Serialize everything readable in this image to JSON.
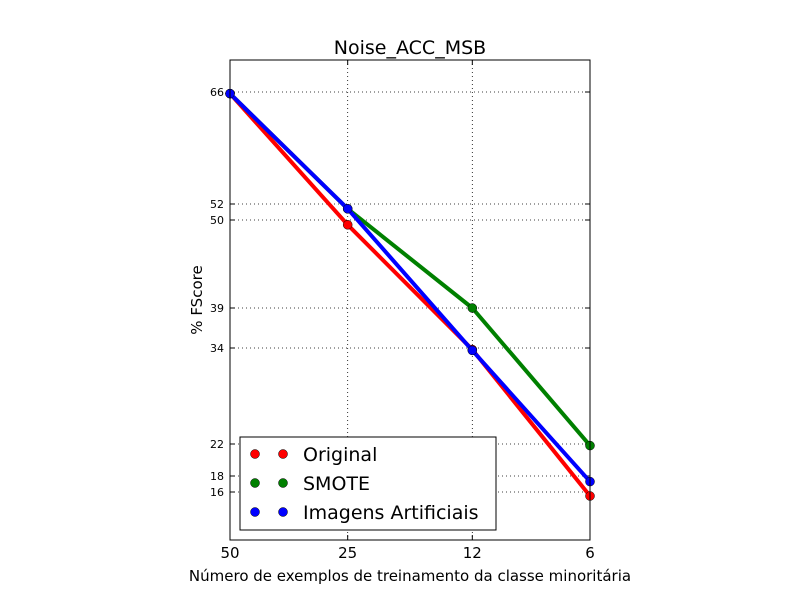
{
  "chart_data": {
    "type": "line",
    "title": "Noise_ACC_MSB",
    "xlabel": "Número de exemplos de treinamento da classe minoritária",
    "ylabel": "% FScore",
    "x": [
      50,
      25,
      12,
      6
    ],
    "x_tick_labels": [
      "50",
      "25",
      "12",
      "6"
    ],
    "x_scale": "log-decreasing",
    "xlim": [
      50,
      6
    ],
    "y_ticks": [
      66,
      52,
      50,
      39,
      34,
      22,
      18,
      16
    ],
    "ylim": [
      10,
      70
    ],
    "grid": true,
    "legend_position": "lower-left",
    "series": [
      {
        "name": "Original",
        "color": "#ff0000",
        "values": [
          65.8,
          49.4,
          33.8,
          15.5
        ]
      },
      {
        "name": "SMOTE",
        "color": "#008000",
        "values": [
          65.8,
          51.4,
          39.0,
          21.8
        ]
      },
      {
        "name": "Imagens Artificiais",
        "color": "#0000ff",
        "values": [
          65.8,
          51.4,
          33.7,
          17.3
        ]
      }
    ]
  }
}
